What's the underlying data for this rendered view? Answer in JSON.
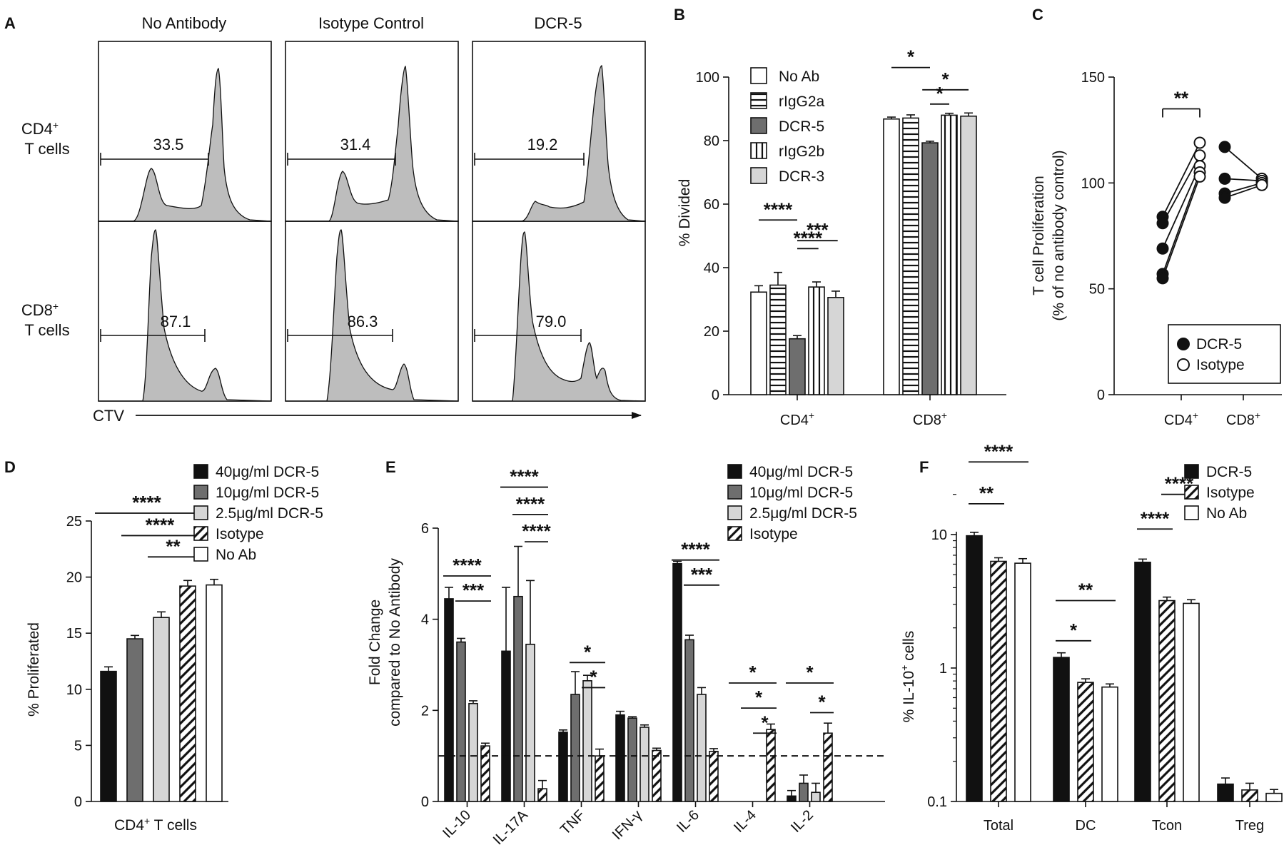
{
  "colors": {
    "black": "#111111",
    "dark_gray": "#6e6e6e",
    "mid_gray": "#8c8c8c",
    "light_gray": "#d6d6d6",
    "lighter_gray": "#e6e6e6",
    "white": "#ffffff",
    "histogram_fill": "#bdbdbd"
  },
  "chart_data": [
    {
      "panel": "A",
      "type": "histogram-grid",
      "columns": [
        "No Antibody",
        "Isotype Control",
        "DCR-5"
      ],
      "rows": [
        {
          "label_line1": "CD4+",
          "label_line2": "T cells",
          "gate_values": [
            "33.5",
            "31.4",
            "19.2"
          ]
        },
        {
          "label_line1": "CD8+",
          "label_line2": "T cells",
          "gate_values": [
            "87.1",
            "86.3",
            "79.0"
          ]
        }
      ],
      "xlabel": "CTV"
    },
    {
      "panel": "B",
      "type": "bar",
      "ylabel": "% Divided",
      "ylim": [
        0,
        100
      ],
      "yticks": [
        0,
        20,
        40,
        60,
        80,
        100
      ],
      "categories": [
        "CD4+",
        "CD8+"
      ],
      "series": [
        {
          "name": "No Ab",
          "pattern": "white",
          "values": [
            32.3,
            86.8
          ],
          "errors": [
            2.0,
            0.6
          ]
        },
        {
          "name": "rIgG2a",
          "pattern": "hstripe",
          "values": [
            34.5,
            87.1
          ],
          "errors": [
            4.0,
            1.0
          ]
        },
        {
          "name": "DCR-5",
          "pattern": "dark",
          "values": [
            17.6,
            79.3
          ],
          "errors": [
            1.0,
            0.5
          ]
        },
        {
          "name": "rIgG2b",
          "pattern": "vstripe",
          "values": [
            33.9,
            88.0
          ],
          "errors": [
            1.6,
            0.6
          ]
        },
        {
          "name": "DCR-3",
          "pattern": "light",
          "values": [
            30.6,
            87.7
          ],
          "errors": [
            2.0,
            1.0
          ]
        }
      ],
      "significance": [
        {
          "label": "****",
          "cat": 0,
          "from": 0,
          "to": 2,
          "y": 55
        },
        {
          "label": "****",
          "cat": 0,
          "from": 2,
          "to": 3.1,
          "y": 46
        },
        {
          "label": "***",
          "cat": 0,
          "from": 2,
          "to": 4.1,
          "y": 48.5
        },
        {
          "label": "*",
          "cat": 1,
          "from": 0,
          "to": 2,
          "y": 103
        },
        {
          "label": "*",
          "cat": 1,
          "from": 2,
          "to": 3,
          "y": 91.5
        },
        {
          "label": "*",
          "cat": 1,
          "from": 1.6,
          "to": 4,
          "y": 96
        }
      ]
    },
    {
      "panel": "C",
      "type": "scatter-paired",
      "ylabel_line1": "T cell Proliferation",
      "ylabel_line2": "(% of no antibody control)",
      "ylim": [
        0,
        150
      ],
      "yticks": [
        0,
        50,
        100,
        150
      ],
      "categories": [
        "CD4+",
        "CD8+"
      ],
      "series": [
        {
          "name": "DCR-5",
          "filled": true
        },
        {
          "name": "Isotype",
          "filled": false
        }
      ],
      "pairs": [
        {
          "cat": 0,
          "dcr5": 84,
          "isotype": 119
        },
        {
          "cat": 0,
          "dcr5": 81,
          "isotype": 113
        },
        {
          "cat": 0,
          "dcr5": 69,
          "isotype": 108
        },
        {
          "cat": 0,
          "dcr5": 57,
          "isotype": 105
        },
        {
          "cat": 0,
          "dcr5": 55,
          "isotype": 103
        },
        {
          "cat": 1,
          "dcr5": 117,
          "isotype": 102
        },
        {
          "cat": 1,
          "dcr5": 102,
          "isotype": 101
        },
        {
          "cat": 1,
          "dcr5": 95,
          "isotype": 100
        },
        {
          "cat": 1,
          "dcr5": 93,
          "isotype": 99
        }
      ],
      "significance": [
        {
          "label": "**",
          "cat": 0,
          "y": 135
        }
      ]
    },
    {
      "panel": "D",
      "type": "bar",
      "ylabel": "% Proliferated",
      "xlabel": "CD4+ T cells",
      "ylim": [
        0,
        25
      ],
      "yticks": [
        0,
        5,
        10,
        15,
        20,
        25
      ],
      "series": [
        {
          "name": "40μg/ml DCR-5",
          "pattern": "black",
          "value": 11.6,
          "error": 0.4
        },
        {
          "name": "10μg/ml DCR-5",
          "pattern": "dark",
          "value": 14.5,
          "error": 0.3
        },
        {
          "name": "2.5μg/ml DCR-5",
          "pattern": "light",
          "value": 16.4,
          "error": 0.5
        },
        {
          "name": "Isotype",
          "pattern": "hatch",
          "value": 19.2,
          "error": 0.5
        },
        {
          "name": "No Ab",
          "pattern": "white",
          "value": 19.3,
          "error": 0.5
        }
      ],
      "significance": [
        {
          "label": "****",
          "from": 0,
          "to": 3,
          "y": 25.7
        },
        {
          "label": "****",
          "from": 1,
          "to": 3,
          "y": 23.7
        },
        {
          "label": "**",
          "from": 2,
          "to": 3,
          "y": 21.8
        }
      ]
    },
    {
      "panel": "E",
      "type": "bar",
      "ylabel_line1": "Fold Change",
      "ylabel_line2": "compared to No Antibody",
      "ylim": [
        0,
        6
      ],
      "yticks": [
        0,
        2,
        4,
        6
      ],
      "reference_line": 1,
      "categories": [
        "IL-10",
        "IL-17A",
        "TNF",
        "IFN-γ",
        "IL-6",
        "IL-4",
        "IL-2"
      ],
      "series": [
        {
          "name": "40μg/ml DCR-5",
          "pattern": "black",
          "values": [
            4.45,
            3.3,
            1.52,
            1.9,
            5.22,
            0,
            0.12
          ],
          "errors": [
            0.25,
            1.4,
            0.05,
            0.08,
            0.05,
            0,
            0.12
          ]
        },
        {
          "name": "10μg/ml DCR-5",
          "pattern": "dark",
          "values": [
            3.5,
            4.5,
            2.35,
            1.83,
            3.55,
            0,
            0.4
          ],
          "errors": [
            0.08,
            1.1,
            0.5,
            0.03,
            0.1,
            0,
            0.18
          ]
        },
        {
          "name": "2.5μg/ml DCR-5",
          "pattern": "light",
          "values": [
            2.15,
            3.45,
            2.65,
            1.63,
            2.35,
            0,
            0.2
          ],
          "errors": [
            0.06,
            1.4,
            0.12,
            0.05,
            0.15,
            0,
            0.2
          ]
        },
        {
          "name": "Isotype",
          "pattern": "hatch",
          "values": [
            1.22,
            0.28,
            1.0,
            1.12,
            1.1,
            1.58,
            1.5
          ],
          "errors": [
            0.06,
            0.18,
            0.15,
            0.05,
            0.06,
            0.12,
            0.22
          ]
        }
      ],
      "significance": [
        {
          "label": "****",
          "cat": 0,
          "from": 0,
          "to": 3,
          "y": 4.95
        },
        {
          "label": "***",
          "cat": 0,
          "from": 1,
          "to": 3,
          "y": 4.4
        },
        {
          "label": "****",
          "cat": 1,
          "from": 0,
          "to": 3,
          "y": 6.9
        },
        {
          "label": "****",
          "cat": 1,
          "from": 1,
          "to": 3,
          "y": 6.3
        },
        {
          "label": "****",
          "cat": 1,
          "from": 2,
          "to": 3,
          "y": 5.7
        },
        {
          "label": "*",
          "cat": 2,
          "from": 1,
          "to": 3,
          "y": 3.05
        },
        {
          "label": "*",
          "cat": 2,
          "from": 2,
          "to": 3,
          "y": 2.5
        },
        {
          "label": "****",
          "cat": 4,
          "from": 0,
          "to": 3,
          "y": 5.3
        },
        {
          "label": "***",
          "cat": 4,
          "from": 1,
          "to": 3,
          "y": 4.75
        },
        {
          "label": "*",
          "cat": 5,
          "from": 0,
          "to": 3,
          "y": 2.6
        },
        {
          "label": "*",
          "cat": 5,
          "from": 1,
          "to": 3,
          "y": 2.05
        },
        {
          "label": "*",
          "cat": 5,
          "from": 2,
          "to": 3,
          "y": 1.5
        },
        {
          "label": "*",
          "cat": 6,
          "from": 0,
          "to": 3,
          "y": 2.6
        },
        {
          "label": "*",
          "cat": 6,
          "from": 2,
          "to": 3,
          "y": 1.95
        }
      ]
    },
    {
      "panel": "F",
      "type": "bar",
      "yscale": "log",
      "ylabel": "% IL-10+ cells",
      "ylim": [
        0.1,
        20
      ],
      "yticks": [
        0.1,
        1,
        10
      ],
      "categories": [
        "Total",
        "DC",
        "Tcon",
        "Treg"
      ],
      "series": [
        {
          "name": "DCR-5",
          "pattern": "black",
          "values": [
            9.8,
            1.2,
            6.2,
            0.135
          ],
          "errors": [
            0.6,
            0.1,
            0.35,
            0.015
          ]
        },
        {
          "name": "Isotype",
          "pattern": "hatch",
          "values": [
            6.3,
            0.78,
            3.2,
            0.122
          ],
          "errors": [
            0.4,
            0.05,
            0.2,
            0.015
          ]
        },
        {
          "name": "No Ab",
          "pattern": "white",
          "values": [
            6.1,
            0.72,
            3.05,
            0.115
          ],
          "errors": [
            0.5,
            0.04,
            0.2,
            0.008
          ]
        }
      ],
      "significance": [
        {
          "label": "****",
          "cat": 0,
          "from": 0,
          "to": 2,
          "y": 35
        },
        {
          "label": "**",
          "cat": 0,
          "from": 0,
          "to": 1,
          "y": 17
        },
        {
          "label": "**",
          "cat": 1,
          "from": 0,
          "to": 2,
          "y": 3.2
        },
        {
          "label": "*",
          "cat": 1,
          "from": 0,
          "to": 1,
          "y": 1.6
        },
        {
          "label": "****",
          "cat": 2,
          "from": 1,
          "to": 2,
          "y": 20
        },
        {
          "label": "****",
          "cat": 2,
          "from": 0,
          "to": 1,
          "y": 11
        }
      ]
    }
  ]
}
